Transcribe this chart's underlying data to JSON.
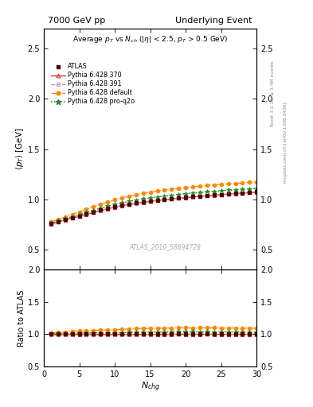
{
  "title_left": "7000 GeV pp",
  "title_right": "Underlying Event",
  "watermark": "ATLAS_2010_S8894728",
  "xlim": [
    0,
    30
  ],
  "ylim_main": [
    0.3,
    2.7
  ],
  "ylim_ratio": [
    0.5,
    2.0
  ],
  "yticks_main": [
    0.5,
    1.0,
    1.5,
    2.0,
    2.5
  ],
  "yticks_ratio": [
    0.5,
    1.0,
    1.5,
    2.0
  ],
  "atlas_x": [
    1,
    2,
    3,
    4,
    5,
    6,
    7,
    8,
    9,
    10,
    11,
    12,
    13,
    14,
    15,
    16,
    17,
    18,
    19,
    20,
    21,
    22,
    23,
    24,
    25,
    26,
    27,
    28,
    29,
    30
  ],
  "atlas_y": [
    0.76,
    0.78,
    0.8,
    0.82,
    0.835,
    0.855,
    0.875,
    0.895,
    0.915,
    0.93,
    0.945,
    0.955,
    0.965,
    0.975,
    0.985,
    0.993,
    1.0,
    1.007,
    1.013,
    1.02,
    1.027,
    1.033,
    1.038,
    1.044,
    1.05,
    1.055,
    1.06,
    1.065,
    1.07,
    1.075
  ],
  "atlas_yerr": [
    0.012,
    0.01,
    0.009,
    0.008,
    0.007,
    0.007,
    0.006,
    0.006,
    0.006,
    0.005,
    0.005,
    0.005,
    0.005,
    0.005,
    0.005,
    0.005,
    0.005,
    0.005,
    0.005,
    0.005,
    0.005,
    0.005,
    0.005,
    0.005,
    0.005,
    0.005,
    0.005,
    0.005,
    0.005,
    0.005
  ],
  "py370_x": [
    1,
    2,
    3,
    4,
    5,
    6,
    7,
    8,
    9,
    10,
    11,
    12,
    13,
    14,
    15,
    16,
    17,
    18,
    19,
    20,
    21,
    22,
    23,
    24,
    25,
    26,
    27,
    28,
    29,
    30
  ],
  "py370_y": [
    0.755,
    0.775,
    0.795,
    0.815,
    0.832,
    0.85,
    0.87,
    0.888,
    0.906,
    0.923,
    0.938,
    0.95,
    0.96,
    0.97,
    0.98,
    0.989,
    0.997,
    1.004,
    1.011,
    1.017,
    1.024,
    1.03,
    1.036,
    1.041,
    1.047,
    1.052,
    1.057,
    1.062,
    1.067,
    1.072
  ],
  "py391_x": [
    1,
    2,
    3,
    4,
    5,
    6,
    7,
    8,
    9,
    10,
    11,
    12,
    13,
    14,
    15,
    16,
    17,
    18,
    19,
    20,
    21,
    22,
    23,
    24,
    25,
    26,
    27,
    28,
    29,
    30
  ],
  "py391_y": [
    0.758,
    0.778,
    0.798,
    0.818,
    0.835,
    0.853,
    0.872,
    0.891,
    0.908,
    0.925,
    0.94,
    0.952,
    0.962,
    0.972,
    0.982,
    0.991,
    0.999,
    1.006,
    1.013,
    1.019,
    1.026,
    1.032,
    1.037,
    1.043,
    1.049,
    1.054,
    1.059,
    1.064,
    1.069,
    1.074
  ],
  "pydef_x": [
    1,
    2,
    3,
    4,
    5,
    6,
    7,
    8,
    9,
    10,
    11,
    12,
    13,
    14,
    15,
    16,
    17,
    18,
    19,
    20,
    21,
    22,
    23,
    24,
    25,
    26,
    27,
    28,
    29,
    30
  ],
  "pydef_y": [
    0.775,
    0.8,
    0.825,
    0.852,
    0.875,
    0.9,
    0.926,
    0.95,
    0.973,
    0.995,
    1.015,
    1.032,
    1.047,
    1.061,
    1.073,
    1.084,
    1.094,
    1.103,
    1.111,
    1.119,
    1.126,
    1.133,
    1.139,
    1.145,
    1.15,
    1.155,
    1.16,
    1.165,
    1.17,
    1.175
  ],
  "pyq2o_x": [
    1,
    2,
    3,
    4,
    5,
    6,
    7,
    8,
    9,
    10,
    11,
    12,
    13,
    14,
    15,
    16,
    17,
    18,
    19,
    20,
    21,
    22,
    23,
    24,
    25,
    26,
    27,
    28,
    29,
    30
  ],
  "pyq2o_y": [
    0.762,
    0.784,
    0.806,
    0.828,
    0.848,
    0.87,
    0.892,
    0.913,
    0.932,
    0.95,
    0.966,
    0.98,
    0.993,
    1.004,
    1.015,
    1.025,
    1.034,
    1.042,
    1.05,
    1.057,
    1.063,
    1.069,
    1.075,
    1.08,
    1.085,
    1.09,
    1.095,
    1.1,
    1.105,
    1.11
  ],
  "color_atlas": "#550000",
  "color_370": "#cc2222",
  "color_391": "#bb88bb",
  "color_default": "#ff8800",
  "color_q2o": "#228822",
  "color_ratio_band": "#ddff44"
}
